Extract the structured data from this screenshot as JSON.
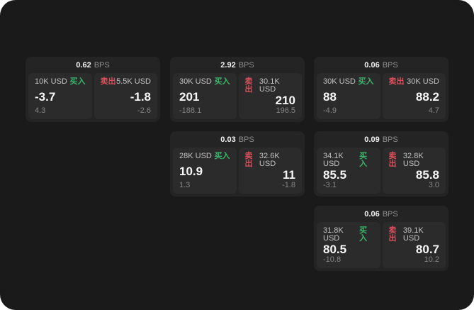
{
  "labels": {
    "bps": "BPS",
    "buy": "买入",
    "sell": "卖出"
  },
  "colors": {
    "app_background": "#1a1a1a",
    "card_background": "#242424",
    "panel_background": "#2b2b2b",
    "buy_green": "#3ab56b",
    "sell_red": "#d9505c"
  },
  "cards": [
    {
      "bps": "0.62",
      "buy": {
        "size": "10K USD",
        "price": "-3.7",
        "delta": "4.3"
      },
      "sell": {
        "size": "5.5K USD",
        "price": "-1.8",
        "delta": "-2.6"
      }
    },
    {
      "bps": "2.92",
      "buy": {
        "size": "30K USD",
        "price": "201",
        "delta": "-188.1"
      },
      "sell": {
        "size": "30.1K USD",
        "price": "210",
        "delta": "196.5"
      }
    },
    {
      "bps": "0.06",
      "buy": {
        "size": "30K USD",
        "price": "88",
        "delta": "-4.9"
      },
      "sell": {
        "size": "30K USD",
        "price": "88.2",
        "delta": "4.7"
      }
    },
    {
      "bps": "0.03",
      "buy": {
        "size": "28K USD",
        "price": "10.9",
        "delta": "1.3"
      },
      "sell": {
        "size": "32.6K USD",
        "price": "11",
        "delta": "-1.8"
      }
    },
    {
      "bps": "0.09",
      "buy": {
        "size": "34.1K USD",
        "price": "85.5",
        "delta": "-3.1"
      },
      "sell": {
        "size": "32.8K USD",
        "price": "85.8",
        "delta": "3.0"
      }
    },
    {
      "bps": "0.06",
      "buy": {
        "size": "31.8K USD",
        "price": "80.5",
        "delta": "-10.8"
      },
      "sell": {
        "size": "39.1K USD",
        "price": "80.7",
        "delta": "10.2"
      }
    }
  ]
}
